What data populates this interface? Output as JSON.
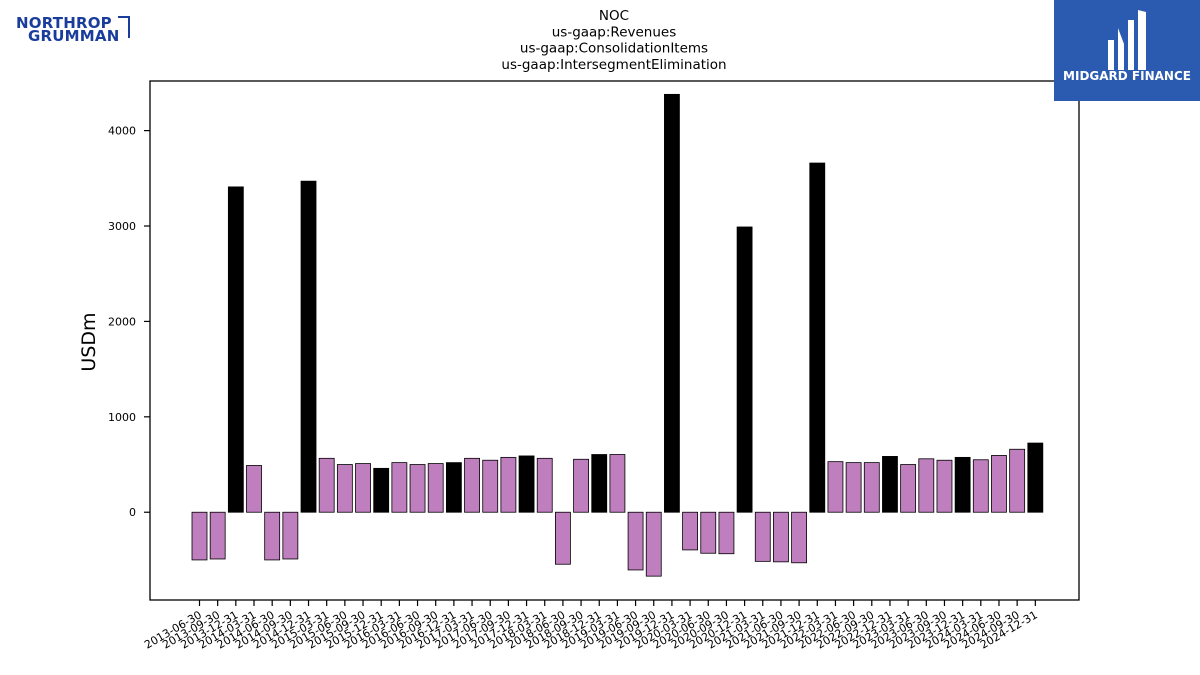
{
  "branding": {
    "left_logo_line1": "NORTHROP",
    "left_logo_line2": "GRUMMAN",
    "right_logo_text": "MIDGARD FINANCE"
  },
  "colors": {
    "positive_black": "#000000",
    "purple": "#bf7fbf"
  },
  "chart_data": {
    "type": "bar",
    "title_lines": [
      "NOC",
      "us-gaap:Revenues",
      "us-gaap:ConsolidationItems",
      "us-gaap:IntersegmentElimination"
    ],
    "xlabel": "",
    "ylabel": "USDm",
    "ylim": [
      -920,
      4520
    ],
    "yticks": [
      0,
      1000,
      2000,
      3000,
      4000
    ],
    "grid": false,
    "categories": [
      "2013-06-30",
      "2013-09-30",
      "2013-12-31",
      "2014-03-31",
      "2014-06-30",
      "2014-09-30",
      "2014-12-31",
      "2015-03-31",
      "2015-06-30",
      "2015-09-30",
      "2015-12-31",
      "2016-03-31",
      "2016-06-30",
      "2016-09-30",
      "2016-12-31",
      "2017-03-31",
      "2017-06-30",
      "2017-09-30",
      "2017-12-31",
      "2018-03-31",
      "2018-06-30",
      "2018-09-30",
      "2018-12-31",
      "2019-03-31",
      "2019-06-30",
      "2019-09-30",
      "2019-12-31",
      "2020-03-31",
      "2020-06-30",
      "2020-09-30",
      "2020-12-31",
      "2021-03-31",
      "2021-06-30",
      "2021-09-30",
      "2021-12-31",
      "2022-03-31",
      "2022-06-30",
      "2022-09-30",
      "2022-12-31",
      "2023-03-31",
      "2023-06-30",
      "2023-09-30",
      "2023-12-31",
      "2024-03-31",
      "2024-06-30",
      "2024-09-30",
      "2024-12-31"
    ],
    "values": [
      -500,
      -490,
      3410,
      490,
      -500,
      -490,
      3470,
      565,
      500,
      510,
      460,
      520,
      500,
      510,
      520,
      565,
      545,
      575,
      590,
      565,
      -545,
      555,
      605,
      605,
      -605,
      -670,
      4380,
      -395,
      -430,
      -435,
      2990,
      -515,
      -520,
      -530,
      3660,
      530,
      520,
      520,
      585,
      500,
      560,
      545,
      575,
      550,
      595,
      660,
      725
    ],
    "colors": [
      "purple",
      "purple",
      "black",
      "purple",
      "purple",
      "purple",
      "black",
      "purple",
      "purple",
      "purple",
      "black",
      "purple",
      "purple",
      "purple",
      "black",
      "purple",
      "purple",
      "purple",
      "black",
      "purple",
      "purple",
      "purple",
      "black",
      "purple",
      "purple",
      "purple",
      "black",
      "purple",
      "purple",
      "purple",
      "black",
      "purple",
      "purple",
      "purple",
      "black",
      "purple",
      "purple",
      "purple",
      "black",
      "purple",
      "purple",
      "purple",
      "black",
      "purple",
      "purple",
      "purple",
      "black"
    ]
  }
}
